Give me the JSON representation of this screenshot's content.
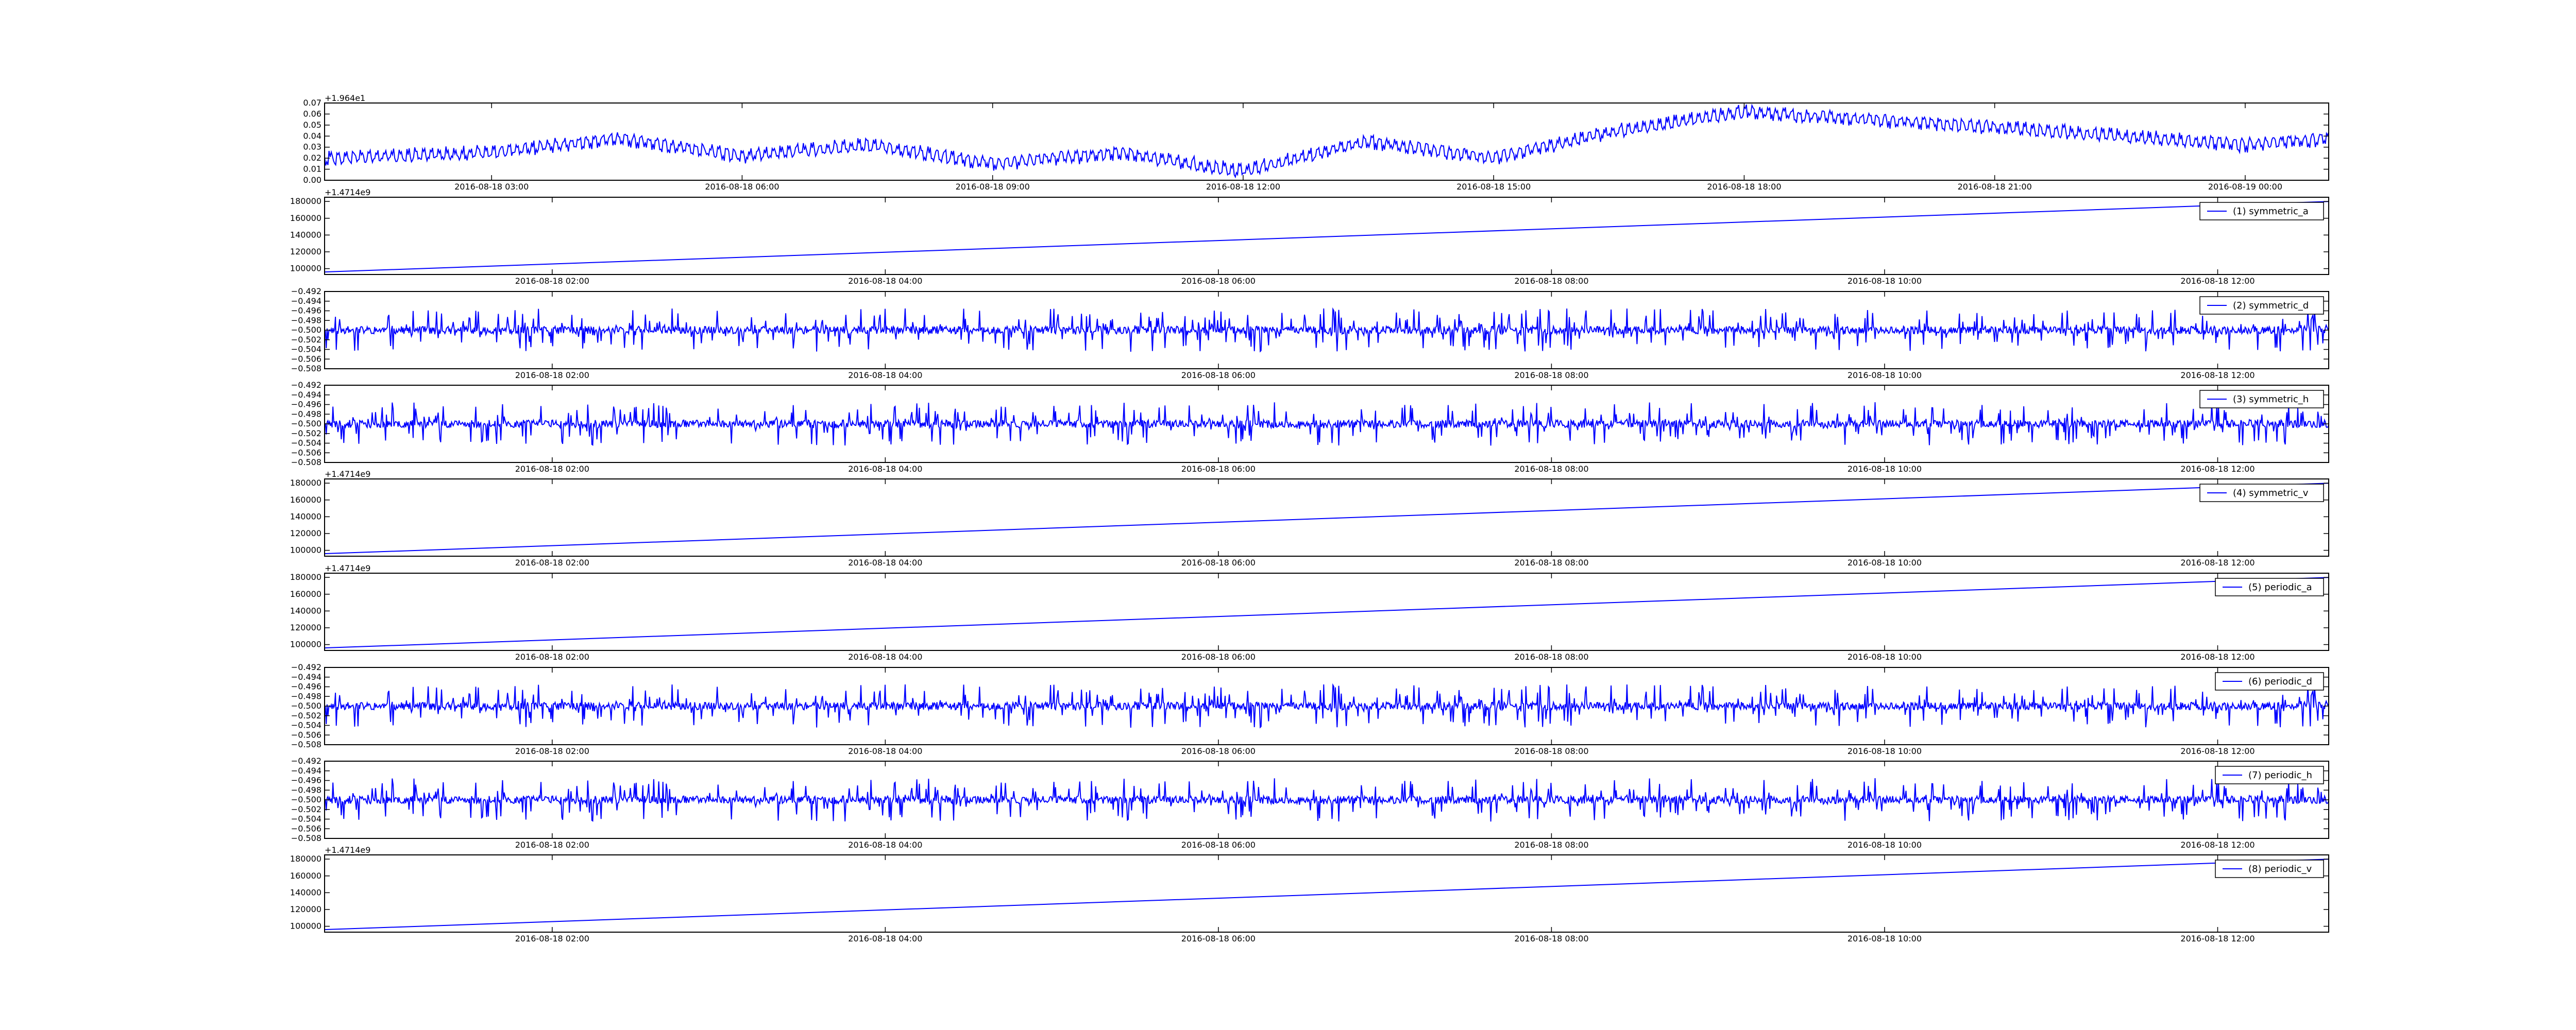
{
  "chart_data": [
    {
      "type": "line",
      "offset_label": "+1.964e1",
      "yticks": [
        0.0,
        0.01,
        0.02,
        0.03,
        0.04,
        0.05,
        0.06,
        0.07
      ],
      "ytick_labels": [
        "0.00",
        "0.01",
        "0.02",
        "0.03",
        "0.04",
        "0.05",
        "0.06",
        "0.07"
      ],
      "ylim": [
        0.0,
        0.07
      ],
      "xticks": [
        "2016-08-18 03:00",
        "2016-08-18 06:00",
        "2016-08-18 09:00",
        "2016-08-18 12:00",
        "2016-08-18 15:00",
        "2016-08-18 18:00",
        "2016-08-18 21:00",
        "2016-08-19 00:00"
      ],
      "xlim": [
        "2016-08-18 01:00",
        "2016-08-19 01:00"
      ],
      "series": [
        {
          "color": "#0000ff",
          "x": [
            "2016-08-18 01:00",
            "2016-08-18 03:00",
            "2016-08-18 04:30",
            "2016-08-18 06:00",
            "2016-08-18 07:30",
            "2016-08-18 09:00",
            "2016-08-18 10:30",
            "2016-08-18 12:00",
            "2016-08-18 13:30",
            "2016-08-18 15:00",
            "2016-08-18 16:30",
            "2016-08-18 18:00",
            "2016-08-18 19:30",
            "2016-08-18 21:00",
            "2016-08-18 22:30",
            "2016-08-19 00:00",
            "2016-08-19 01:00"
          ],
          "y": [
            0.02,
            0.025,
            0.038,
            0.022,
            0.032,
            0.015,
            0.025,
            0.008,
            0.035,
            0.02,
            0.045,
            0.062,
            0.055,
            0.048,
            0.04,
            0.032,
            0.038
          ]
        }
      ]
    },
    {
      "type": "line",
      "offset_label": "+1.4714e9",
      "legend": "(1) symmetric_a",
      "yticks": [
        100000,
        120000,
        140000,
        160000,
        180000
      ],
      "ytick_labels": [
        "100000",
        "120000",
        "140000",
        "160000",
        "180000"
      ],
      "ylim": [
        93000,
        185000
      ],
      "xticks": [
        "2016-08-18 02:00",
        "2016-08-18 04:00",
        "2016-08-18 06:00",
        "2016-08-18 08:00",
        "2016-08-18 10:00",
        "2016-08-18 12:00"
      ],
      "xlim": [
        "2016-08-18 00:38",
        "2016-08-18 12:40"
      ],
      "series": [
        {
          "color": "#0000ff",
          "x": [
            "2016-08-18 00:38",
            "2016-08-18 12:40"
          ],
          "y": [
            96000,
            180000
          ]
        }
      ]
    },
    {
      "type": "line",
      "legend": "(2) symmetric_d",
      "yticks": [
        -0.508,
        -0.506,
        -0.504,
        -0.502,
        -0.5,
        -0.498,
        -0.496,
        -0.494,
        -0.492
      ],
      "ytick_labels": [
        "−0.508",
        "−0.506",
        "−0.504",
        "−0.502",
        "−0.500",
        "−0.498",
        "−0.496",
        "−0.494",
        "−0.492"
      ],
      "ylim": [
        -0.508,
        -0.492
      ],
      "xticks": [
        "2016-08-18 02:00",
        "2016-08-18 04:00",
        "2016-08-18 06:00",
        "2016-08-18 08:00",
        "2016-08-18 10:00",
        "2016-08-18 12:00"
      ],
      "xlim": [
        "2016-08-18 00:38",
        "2016-08-18 12:40"
      ],
      "series": [
        {
          "color": "#0000ff",
          "baseline": -0.5,
          "spread": 0.0045,
          "n_points": 2400,
          "seed": 11
        }
      ]
    },
    {
      "type": "line",
      "legend": "(3) symmetric_h",
      "yticks": [
        -0.508,
        -0.506,
        -0.504,
        -0.502,
        -0.5,
        -0.498,
        -0.496,
        -0.494,
        -0.492
      ],
      "ytick_labels": [
        "−0.508",
        "−0.506",
        "−0.504",
        "−0.502",
        "−0.500",
        "−0.498",
        "−0.496",
        "−0.494",
        "−0.492"
      ],
      "ylim": [
        -0.508,
        -0.492
      ],
      "xticks": [
        "2016-08-18 02:00",
        "2016-08-18 04:00",
        "2016-08-18 06:00",
        "2016-08-18 08:00",
        "2016-08-18 10:00",
        "2016-08-18 12:00"
      ],
      "xlim": [
        "2016-08-18 00:38",
        "2016-08-18 12:40"
      ],
      "series": [
        {
          "color": "#0000ff",
          "baseline": -0.5,
          "spread": 0.0045,
          "n_points": 2400,
          "seed": 23
        }
      ]
    },
    {
      "type": "line",
      "offset_label": "+1.4714e9",
      "legend": "(4) symmetric_v",
      "yticks": [
        100000,
        120000,
        140000,
        160000,
        180000
      ],
      "ytick_labels": [
        "100000",
        "120000",
        "140000",
        "160000",
        "180000"
      ],
      "ylim": [
        93000,
        185000
      ],
      "xticks": [
        "2016-08-18 02:00",
        "2016-08-18 04:00",
        "2016-08-18 06:00",
        "2016-08-18 08:00",
        "2016-08-18 10:00",
        "2016-08-18 12:00"
      ],
      "xlim": [
        "2016-08-18 00:38",
        "2016-08-18 12:40"
      ],
      "series": [
        {
          "color": "#0000ff",
          "x": [
            "2016-08-18 00:38",
            "2016-08-18 12:40"
          ],
          "y": [
            96000,
            180000
          ]
        }
      ]
    },
    {
      "type": "line",
      "offset_label": "+1.4714e9",
      "legend": "(5) periodic_a",
      "yticks": [
        100000,
        120000,
        140000,
        160000,
        180000
      ],
      "ytick_labels": [
        "100000",
        "120000",
        "140000",
        "160000",
        "180000"
      ],
      "ylim": [
        93000,
        185000
      ],
      "xticks": [
        "2016-08-18 02:00",
        "2016-08-18 04:00",
        "2016-08-18 06:00",
        "2016-08-18 08:00",
        "2016-08-18 10:00",
        "2016-08-18 12:00"
      ],
      "xlim": [
        "2016-08-18 00:38",
        "2016-08-18 12:40"
      ],
      "series": [
        {
          "color": "#0000ff",
          "x": [
            "2016-08-18 00:38",
            "2016-08-18 12:40"
          ],
          "y": [
            96000,
            180000
          ]
        }
      ]
    },
    {
      "type": "line",
      "legend": "(6) periodic_d",
      "yticks": [
        -0.508,
        -0.506,
        -0.504,
        -0.502,
        -0.5,
        -0.498,
        -0.496,
        -0.494,
        -0.492
      ],
      "ytick_labels": [
        "−0.508",
        "−0.506",
        "−0.504",
        "−0.502",
        "−0.500",
        "−0.498",
        "−0.496",
        "−0.494",
        "−0.492"
      ],
      "ylim": [
        -0.508,
        -0.492
      ],
      "xticks": [
        "2016-08-18 02:00",
        "2016-08-18 04:00",
        "2016-08-18 06:00",
        "2016-08-18 08:00",
        "2016-08-18 10:00",
        "2016-08-18 12:00"
      ],
      "xlim": [
        "2016-08-18 00:38",
        "2016-08-18 12:40"
      ],
      "series": [
        {
          "color": "#0000ff",
          "baseline": -0.5,
          "spread": 0.0045,
          "n_points": 2400,
          "seed": 11
        }
      ]
    },
    {
      "type": "line",
      "legend": "(7) periodic_h",
      "yticks": [
        -0.508,
        -0.506,
        -0.504,
        -0.502,
        -0.5,
        -0.498,
        -0.496,
        -0.494,
        -0.492
      ],
      "ytick_labels": [
        "−0.508",
        "−0.506",
        "−0.504",
        "−0.502",
        "−0.500",
        "−0.498",
        "−0.496",
        "−0.494",
        "−0.492"
      ],
      "ylim": [
        -0.508,
        -0.492
      ],
      "xticks": [
        "2016-08-18 02:00",
        "2016-08-18 04:00",
        "2016-08-18 06:00",
        "2016-08-18 08:00",
        "2016-08-18 10:00",
        "2016-08-18 12:00"
      ],
      "xlim": [
        "2016-08-18 00:38",
        "2016-08-18 12:40"
      ],
      "series": [
        {
          "color": "#0000ff",
          "baseline": -0.5,
          "spread": 0.0045,
          "n_points": 2400,
          "seed": 23
        }
      ]
    },
    {
      "type": "line",
      "offset_label": "+1.4714e9",
      "legend": "(8) periodic_v",
      "yticks": [
        100000,
        120000,
        140000,
        160000,
        180000
      ],
      "ytick_labels": [
        "100000",
        "120000",
        "140000",
        "160000",
        "180000"
      ],
      "ylim": [
        93000,
        185000
      ],
      "xticks": [
        "2016-08-18 02:00",
        "2016-08-18 04:00",
        "2016-08-18 06:00",
        "2016-08-18 08:00",
        "2016-08-18 10:00",
        "2016-08-18 12:00"
      ],
      "xlim": [
        "2016-08-18 00:38",
        "2016-08-18 12:40"
      ],
      "series": [
        {
          "color": "#0000ff",
          "x": [
            "2016-08-18 00:38",
            "2016-08-18 12:40"
          ],
          "y": [
            96000,
            180000
          ]
        }
      ]
    }
  ]
}
